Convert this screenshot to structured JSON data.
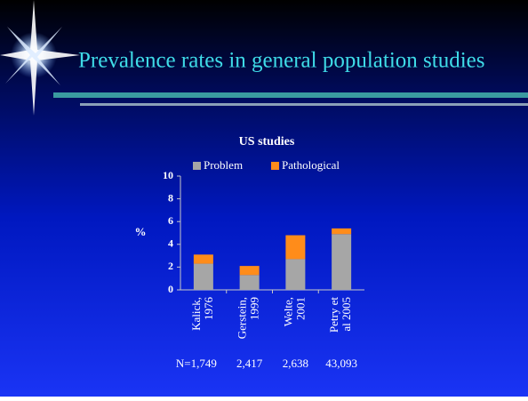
{
  "header": {
    "title": "Prevalence rates in general population studies"
  },
  "chart_data": {
    "type": "stacked-bar",
    "title": "US studies",
    "y_label": "%",
    "categories": [
      [
        "Kalick,",
        "1976"
      ],
      [
        "Gerstein,",
        "1999"
      ],
      [
        "Welte,",
        "2001"
      ],
      [
        "Petry et",
        "al 2005"
      ]
    ],
    "series": [
      {
        "name": "Problem",
        "color": "#a6a6a6",
        "values": [
          2.3,
          1.3,
          2.7,
          4.9
        ]
      },
      {
        "name": "Pathological",
        "color": "#ff8c1a",
        "values": [
          0.8,
          0.8,
          2.1,
          0.5
        ]
      }
    ],
    "ylim": [
      0,
      10
    ],
    "yticks": [
      0,
      2,
      4,
      6,
      8,
      10
    ],
    "n_labels": [
      "N=1,749",
      "2,417",
      "2,638",
      "43,093"
    ]
  }
}
